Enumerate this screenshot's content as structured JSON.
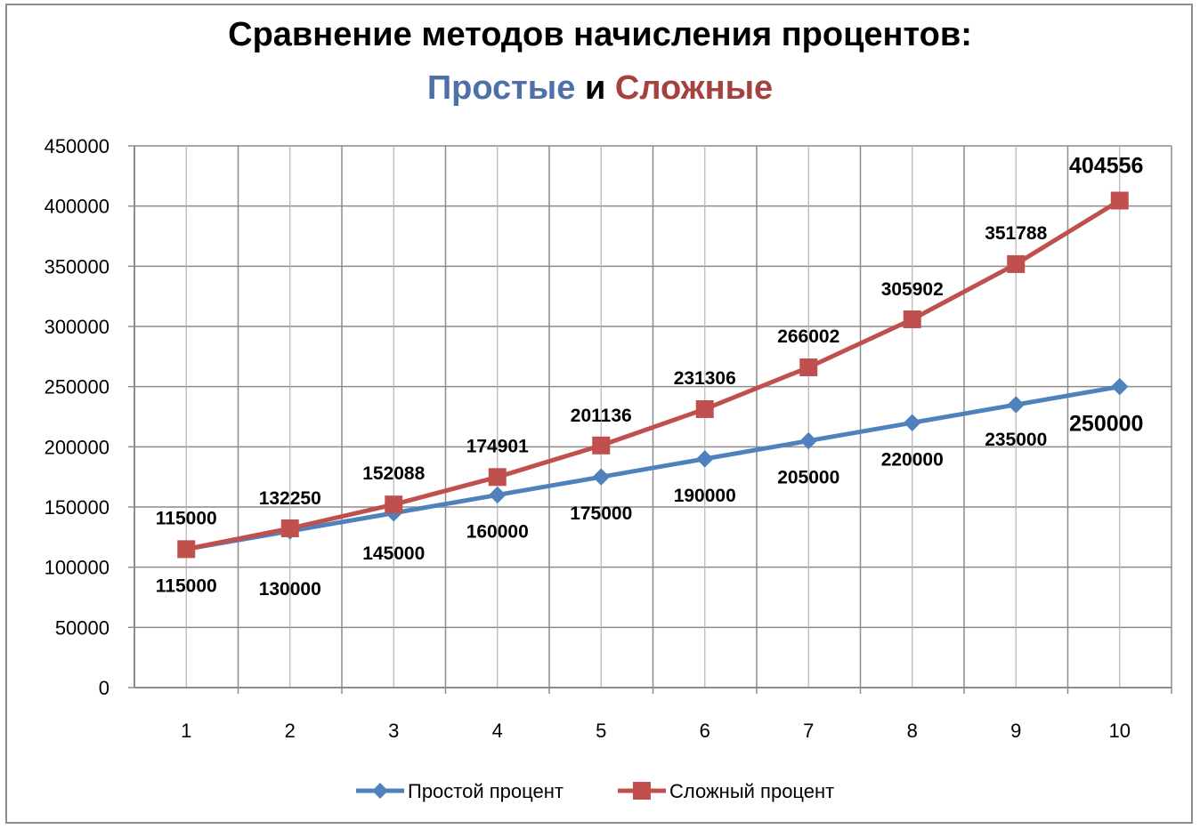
{
  "chart_data": {
    "type": "line",
    "title": "Сравнение методов начисления процентов:",
    "subtitle_parts": [
      "Простые",
      "и",
      "Сложные"
    ],
    "x": [
      1,
      2,
      3,
      4,
      5,
      6,
      7,
      8,
      9,
      10
    ],
    "x_tick_labels": [
      "1",
      "2",
      "3",
      "4",
      "5",
      "6",
      "7",
      "8",
      "9",
      "10"
    ],
    "ylim": [
      0,
      450000
    ],
    "y_ticks": [
      0,
      50000,
      100000,
      150000,
      200000,
      250000,
      300000,
      350000,
      400000,
      450000
    ],
    "y_tick_labels": [
      "0",
      "50000",
      "100000",
      "150000",
      "200000",
      "250000",
      "300000",
      "350000",
      "400000",
      "450000"
    ],
    "grid": true,
    "legend_position": "bottom",
    "series": [
      {
        "name": "Простой процент",
        "color": "#4F81BD",
        "marker": "diamond",
        "values": [
          115000,
          130000,
          145000,
          160000,
          175000,
          190000,
          205000,
          220000,
          235000,
          250000
        ],
        "labels": [
          "115000",
          "130000",
          "145000",
          "160000",
          "175000",
          "190000",
          "205000",
          "220000",
          "235000",
          "250000"
        ],
        "label_position": "below"
      },
      {
        "name": "Сложный процент",
        "color": "#C0504D",
        "marker": "square",
        "values": [
          115000,
          132250,
          152088,
          174901,
          201136,
          231306,
          266002,
          305902,
          351788,
          404556
        ],
        "labels": [
          "115000",
          "132250",
          "152088",
          "174901",
          "201136",
          "231306",
          "266002",
          "305902",
          "351788",
          "404556"
        ],
        "label_position": "above"
      }
    ]
  }
}
